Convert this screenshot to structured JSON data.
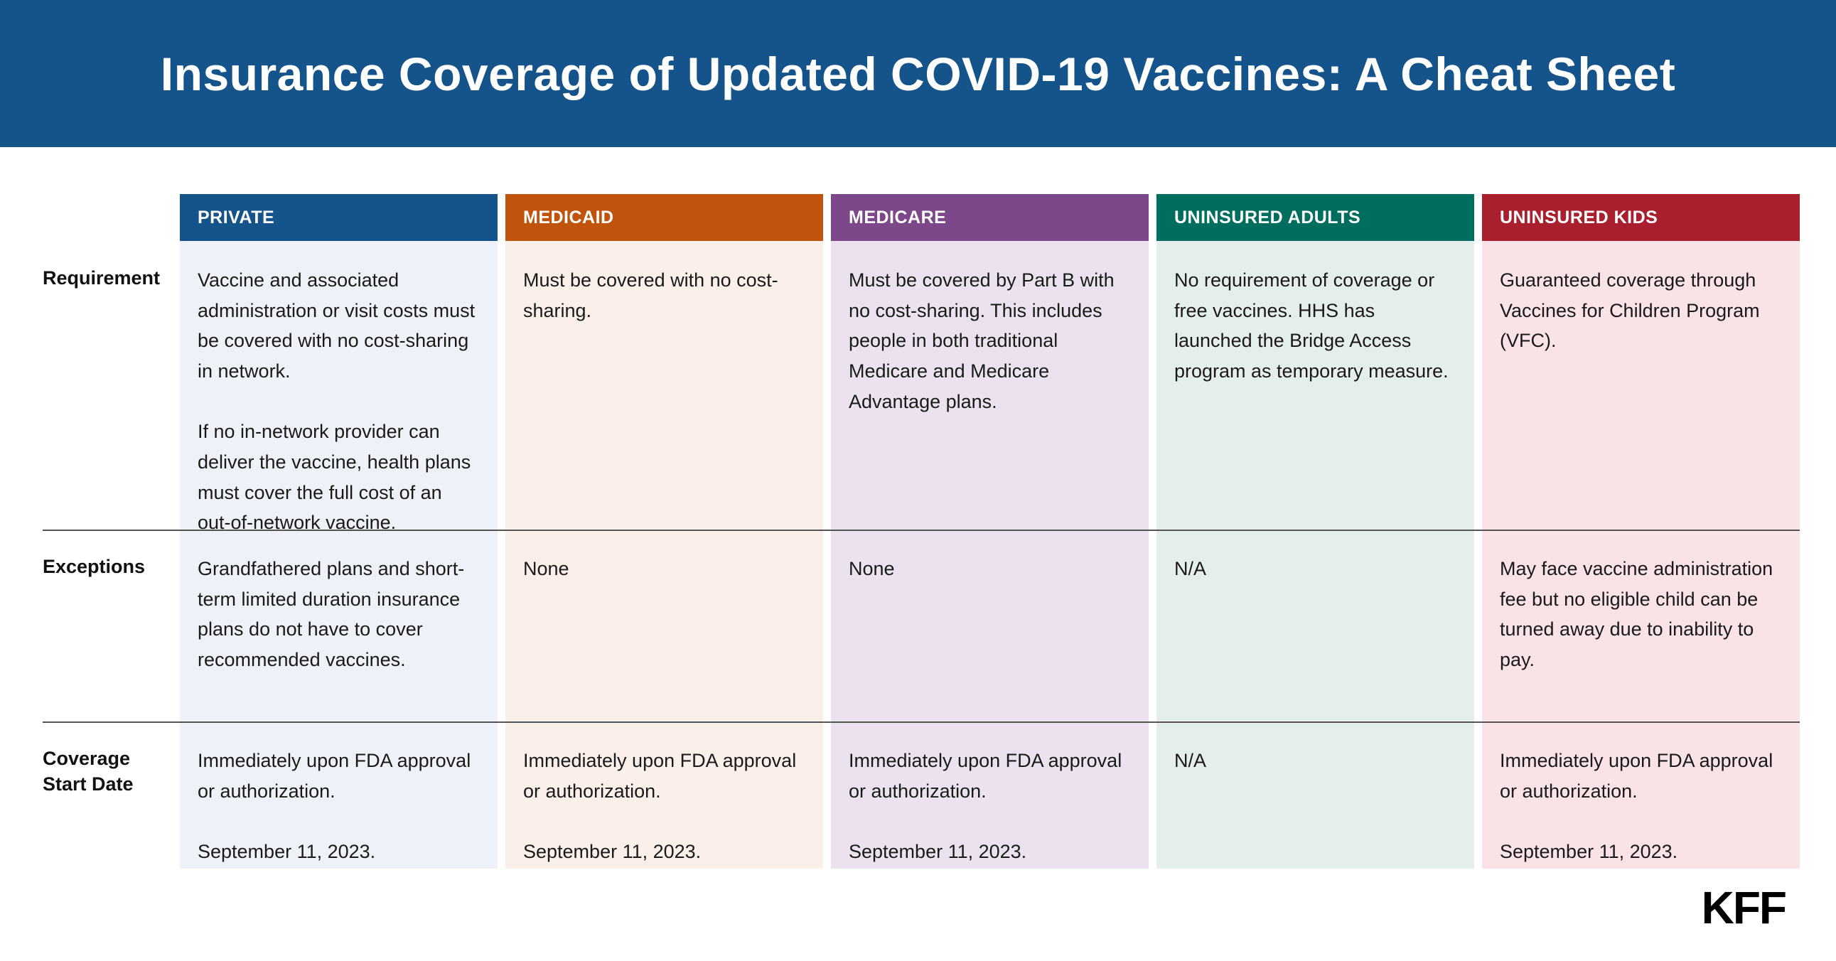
{
  "banner": {
    "title": "Insurance Coverage of Updated COVID-19 Vaccines: A Cheat Sheet"
  },
  "row_labels": [
    "Requirement",
    "Exceptions",
    "Coverage\nStart Date"
  ],
  "chart_data": {
    "type": "table",
    "title": "Insurance Coverage of Updated COVID-19 Vaccines: A Cheat Sheet",
    "columns": [
      "PRIVATE",
      "MEDICAID",
      "MEDICARE",
      "UNINSURED ADULTS",
      "UNINSURED KIDS"
    ],
    "row_headers": [
      "Requirement",
      "Exceptions",
      "Coverage Start Date"
    ],
    "cells": [
      [
        "Vaccine and associated administration or visit costs must be covered with no cost-sharing in network.\n\nIf no in-network provider can deliver the vaccine, health plans must cover the full cost of an out-of-network vaccine.",
        "Must be covered with no cost-sharing.",
        "Must be covered by Part B with no cost-sharing. This includes people in both traditional Medicare and Medicare Advantage plans.",
        "No requirement of coverage or free vaccines. HHS has launched the Bridge Access program as temporary measure.",
        "Guaranteed coverage through Vaccines for Children Program (VFC)."
      ],
      [
        "Grandfathered plans and short-term limited duration insurance plans do not have to cover recommended vaccines.",
        "None",
        "None",
        "N/A",
        "May face vaccine administration fee but no eligible child can be turned away due to inability to pay."
      ],
      [
        "Immediately upon FDA approval or authorization.\n\nSeptember 11, 2023.",
        "Immediately upon FDA approval or authorization.\n\nSeptember 11, 2023.",
        "Immediately upon FDA approval or authorization.\n\nSeptember 11, 2023.",
        "N/A",
        "Immediately upon FDA approval or authorization.\n\nSeptember 11, 2023."
      ]
    ]
  },
  "colors": {
    "banner_blue": "#15538b",
    "private_header": "#15538b",
    "private_tint": "#eef2f8",
    "medicaid_header": "#c1540c",
    "medicaid_tint": "#faf0e9",
    "medicare_header": "#7d4889",
    "medicare_tint": "#ebe1ef",
    "uninsured_adults_header": "#006e5e",
    "uninsured_adults_tint": "#e4eeeb",
    "uninsured_kids_header": "#a91f2d",
    "uninsured_kids_tint": "#f9e3e7"
  },
  "logo": {
    "text": "KFF"
  }
}
